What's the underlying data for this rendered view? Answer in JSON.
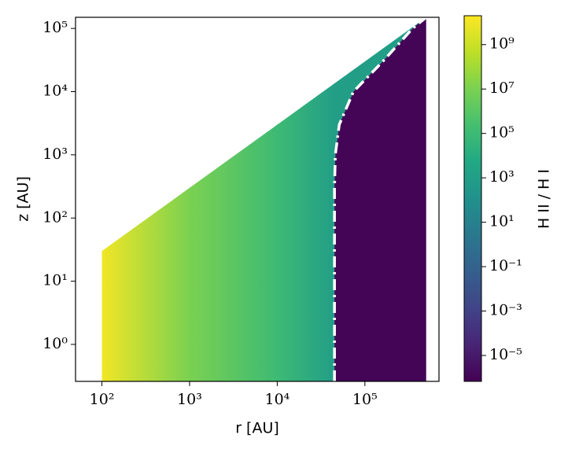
{
  "chart_data": {
    "type": "heatmap",
    "xlabel": "r [AU]",
    "ylabel": "z [AU]",
    "colorbar_label": "H II / H I",
    "xscale": "log",
    "yscale": "log",
    "colormap": "viridis",
    "xlim": [
      50,
      700000
    ],
    "ylim": [
      0.26,
      150000
    ],
    "xticks": [
      {
        "value": 100,
        "label": "10²"
      },
      {
        "value": 1000,
        "label": "10³"
      },
      {
        "value": 10000,
        "label": "10⁴"
      },
      {
        "value": 100000,
        "label": "10⁵"
      }
    ],
    "yticks": [
      {
        "value": 1,
        "label": "10⁰"
      },
      {
        "value": 10,
        "label": "10¹"
      },
      {
        "value": 100,
        "label": "10²"
      },
      {
        "value": 1000,
        "label": "10³"
      },
      {
        "value": 10000,
        "label": "10⁴"
      },
      {
        "value": 100000,
        "label": "10⁵"
      }
    ],
    "clim": [
      6.8e-07,
      20000000000.0
    ],
    "cticks": [
      {
        "value": 1e-05,
        "label": "10⁻⁵"
      },
      {
        "value": 0.001,
        "label": "10⁻³"
      },
      {
        "value": 0.1,
        "label": "10⁻¹"
      },
      {
        "value": 10,
        "label": "10¹"
      },
      {
        "value": 1000,
        "label": "10³"
      },
      {
        "value": 100000,
        "label": "10⁵"
      },
      {
        "value": 10000000,
        "label": "10⁷"
      },
      {
        "value": 1000000000,
        "label": "10⁹"
      }
    ],
    "disk_surface": {
      "r": [
        100,
        500000
      ],
      "z": [
        30,
        150000
      ]
    },
    "ionized": {
      "r": [
        100,
        1000,
        10000,
        45000,
        500000
      ],
      "values": [
        10000000000.0,
        10000000.0,
        100000.0,
        1000,
        1000
      ]
    },
    "neutral_value": 1e-06,
    "ionization_front": {
      "r": [
        45000,
        45000,
        46000,
        51000,
        74000,
        160000,
        350000,
        500000
      ],
      "z": [
        0.26,
        300,
        1000,
        3000,
        10000,
        30000,
        100000,
        150000
      ]
    }
  }
}
